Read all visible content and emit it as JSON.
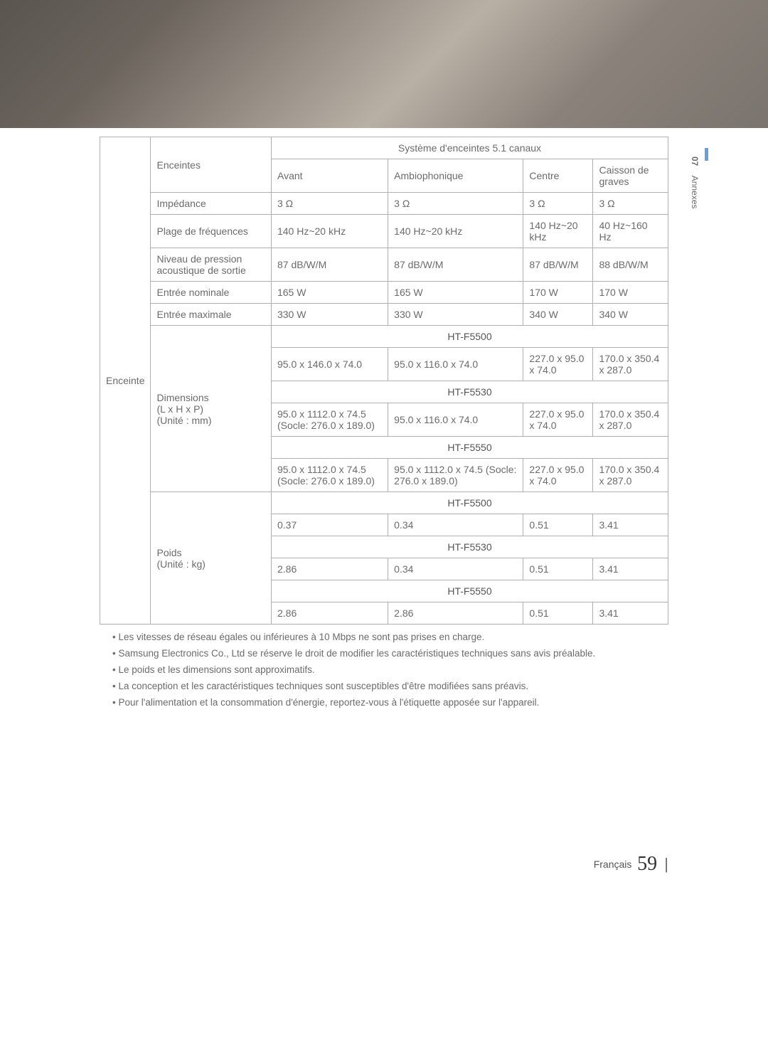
{
  "side": {
    "num": "07",
    "label": "Annexes"
  },
  "footer": {
    "lang": "Français",
    "page": "59"
  },
  "table": {
    "sectionLabel": "Enceinte",
    "row1": {
      "label": "Enceintes",
      "spanHead": "Système d'enceintes 5.1 canaux",
      "c1": "Avant",
      "c2": "Ambiophonique",
      "c3": "Centre",
      "c4": "Caisson de graves"
    },
    "row2": {
      "label": "Impédance",
      "c1": "3 Ω",
      "c2": "3 Ω",
      "c3": "3 Ω",
      "c4": "3 Ω"
    },
    "row3": {
      "label": "Plage de fréquences",
      "c1": "140 Hz~20 kHz",
      "c2": "140 Hz~20 kHz",
      "c3": "140 Hz~20 kHz",
      "c4": "40 Hz~160 Hz"
    },
    "row4": {
      "label": "Niveau de pression acoustique de sortie",
      "c1": "87 dB/W/M",
      "c2": "87 dB/W/M",
      "c3": "87 dB/W/M",
      "c4": "88 dB/W/M"
    },
    "row5": {
      "label": "Entrée nominale",
      "c1": "165 W",
      "c2": "165 W",
      "c3": "170 W",
      "c4": "170 W"
    },
    "row6": {
      "label": "Entrée maximale",
      "c1": "330 W",
      "c2": "330 W",
      "c3": "340 W",
      "c4": "340 W"
    },
    "dimLabel": "Dimensions\n(L x H x P)\n(Unité : mm)",
    "dim": {
      "m1": "HT-F5500",
      "r1": {
        "c1": "95.0 x 146.0 x 74.0",
        "c2": "95.0 x 116.0 x 74.0",
        "c3": "227.0 x 95.0 x 74.0",
        "c4": "170.0 x 350.4 x 287.0"
      },
      "m2": "HT-F5530",
      "r2": {
        "c1": "95.0 x 1112.0 x 74.5 (Socle: 276.0 x 189.0)",
        "c2": "95.0 x 116.0 x 74.0",
        "c3": "227.0 x 95.0 x 74.0",
        "c4": "170.0 x 350.4 x 287.0"
      },
      "m3": "HT-F5550",
      "r3": {
        "c1": "95.0 x 1112.0 x 74.5 (Socle: 276.0 x 189.0)",
        "c2": "95.0 x 1112.0 x 74.5 (Socle: 276.0 x 189.0)",
        "c3": "227.0 x 95.0 x 74.0",
        "c4": "170.0 x 350.4 x 287.0"
      }
    },
    "weightLabel": "Poids\n(Unité : kg)",
    "weight": {
      "m1": "HT-F5500",
      "r1": {
        "c1": "0.37",
        "c2": "0.34",
        "c3": "0.51",
        "c4": "3.41"
      },
      "m2": "HT-F5530",
      "r2": {
        "c1": "2.86",
        "c2": "0.34",
        "c3": "0.51",
        "c4": "3.41"
      },
      "m3": "HT-F5550",
      "r3": {
        "c1": "2.86",
        "c2": "2.86",
        "c3": "0.51",
        "c4": "3.41"
      }
    }
  },
  "notes": {
    "n1": "Les vitesses de réseau égales ou inférieures à 10 Mbps ne sont pas prises en charge.",
    "n2": "Samsung Electronics Co., Ltd se réserve le droit de modifier les caractéristiques techniques sans avis préalable.",
    "n3": "Le poids et les dimensions sont approximatifs.",
    "n4": "La conception et les caractéristiques techniques sont susceptibles d'être modifiées sans préavis.",
    "n5": "Pour l'alimentation et la consommation d'énergie, reportez-vous à l'étiquette apposée sur l'appareil."
  }
}
